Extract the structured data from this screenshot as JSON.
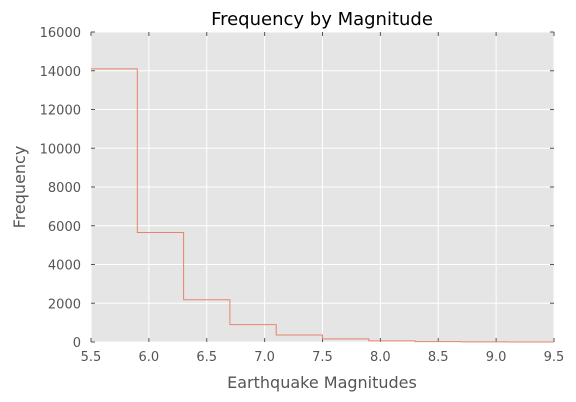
{
  "chart_data": {
    "type": "line",
    "style": "step-histogram",
    "title": "Frequency by Magnitude",
    "xlabel": "Earthquake Magnitudes",
    "ylabel": "Frequency",
    "xlim": [
      5.5,
      9.5
    ],
    "ylim": [
      0,
      16000
    ],
    "xticks": [
      "5.5",
      "6.0",
      "6.5",
      "7.0",
      "7.5",
      "8.0",
      "8.5",
      "9.0",
      "9.5"
    ],
    "yticks": [
      "0",
      "2000",
      "4000",
      "6000",
      "8000",
      "10000",
      "12000",
      "14000",
      "16000"
    ],
    "grid": true,
    "background_color": "#e5e5e5",
    "line_color": "#e8836f",
    "bin_edges": [
      5.5,
      5.9,
      6.3,
      6.7,
      7.1,
      7.5,
      7.9,
      8.3,
      8.7,
      9.1,
      9.5
    ],
    "values": [
      14100,
      5650,
      2180,
      900,
      360,
      160,
      60,
      20,
      8,
      3
    ]
  }
}
